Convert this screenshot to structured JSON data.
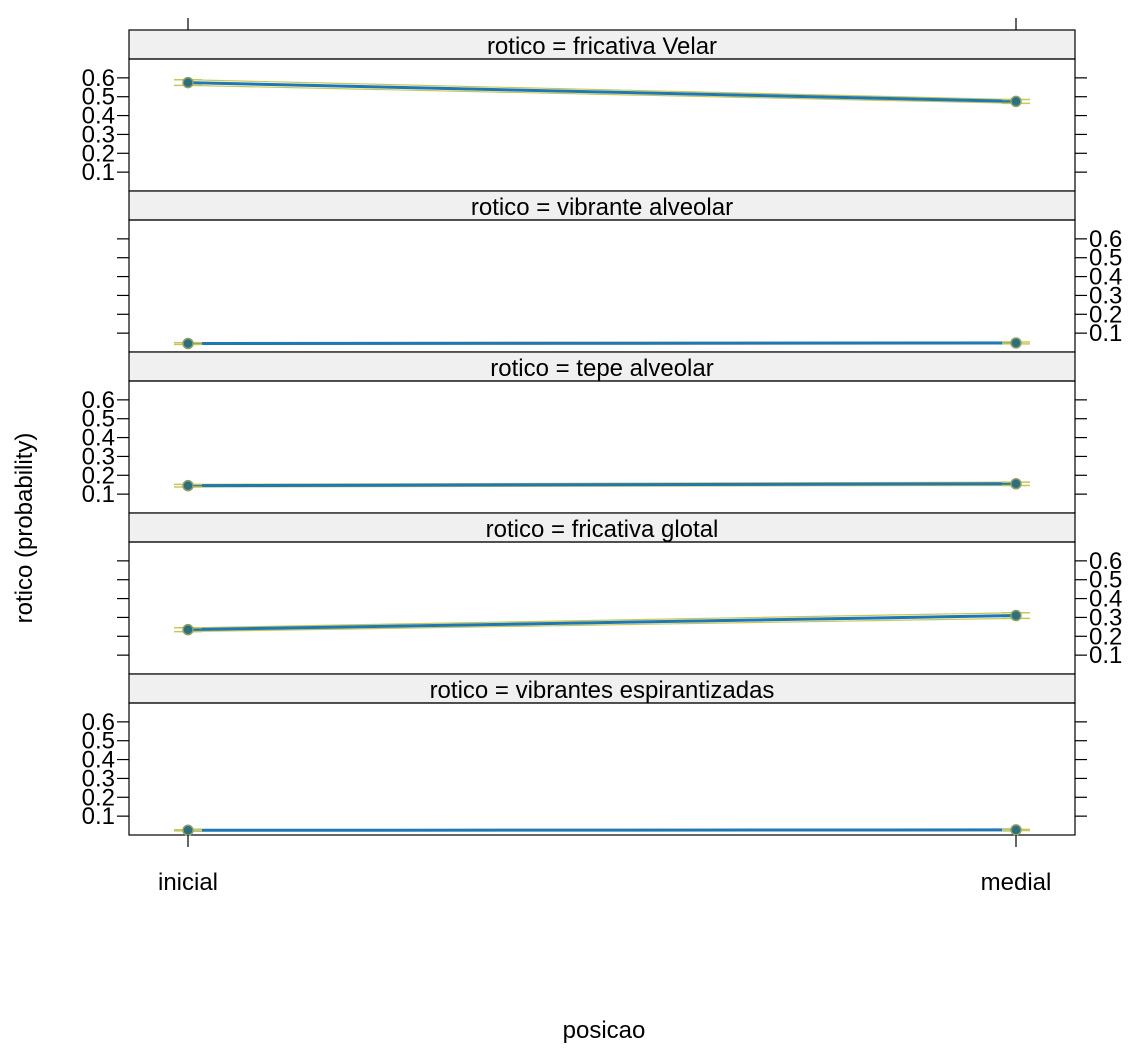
{
  "chart_data": {
    "type": "line",
    "xlabel": "posicao",
    "ylabel": "rotico (probability)",
    "categories": [
      "inicial",
      "medial"
    ],
    "ylim": [
      0,
      0.7
    ],
    "yticks": [
      0.1,
      0.2,
      0.3,
      0.4,
      0.5,
      0.6
    ],
    "grid": false,
    "panels": [
      {
        "strip": "rotico = fricativa Velar",
        "values": [
          0.575,
          0.475
        ],
        "lower": [
          0.56,
          0.465
        ],
        "upper": [
          0.59,
          0.485
        ],
        "y_axis_side": "left"
      },
      {
        "strip": "rotico = vibrante alveolar",
        "values": [
          0.045,
          0.048
        ],
        "lower": [
          0.04,
          0.043
        ],
        "upper": [
          0.05,
          0.053
        ],
        "y_axis_side": "right"
      },
      {
        "strip": "rotico = tepe alveolar",
        "values": [
          0.145,
          0.155
        ],
        "lower": [
          0.138,
          0.146
        ],
        "upper": [
          0.152,
          0.164
        ],
        "y_axis_side": "left"
      },
      {
        "strip": "rotico = fricativa glotal",
        "values": [
          0.235,
          0.31
        ],
        "lower": [
          0.225,
          0.295
        ],
        "upper": [
          0.245,
          0.325
        ],
        "y_axis_side": "right"
      },
      {
        "strip": "rotico = vibrantes espirantizadas",
        "values": [
          0.025,
          0.027
        ],
        "lower": [
          0.022,
          0.024
        ],
        "upper": [
          0.028,
          0.03
        ],
        "y_axis_side": "left"
      }
    ],
    "colors": {
      "line": "#1f77b4",
      "point": "#2e6f7e",
      "ci": "#c8c85a",
      "strip_bg": "#f0f0f0"
    }
  }
}
